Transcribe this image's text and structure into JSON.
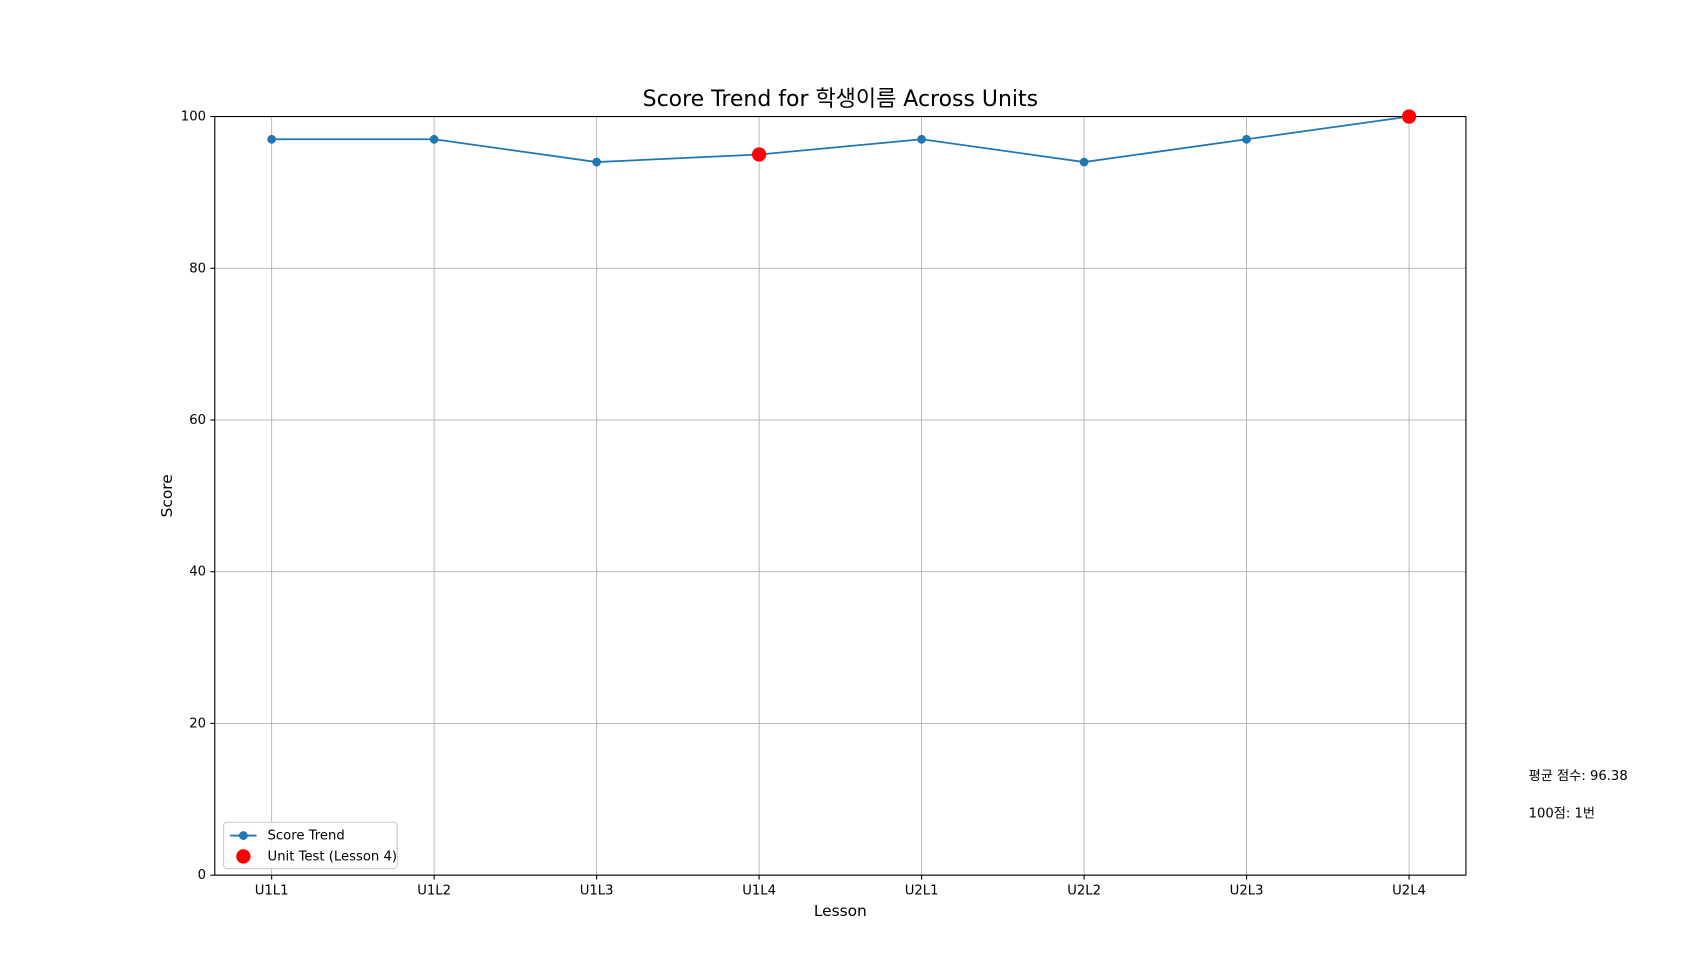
{
  "chart_data": {
    "type": "line",
    "title": "Score Trend for 학생이름 Across Units",
    "x_label": "Lesson",
    "y_label": "Score",
    "categories": [
      "U1L1",
      "U1L2",
      "U1L3",
      "U1L4",
      "U2L1",
      "U2L2",
      "U2L3",
      "U2L4"
    ],
    "series": [
      {
        "name": "Score Trend",
        "color": "#1f77b4",
        "values": [
          97,
          97,
          94,
          95,
          97,
          94,
          97,
          100
        ]
      },
      {
        "name": "Unit Test (Lesson 4)",
        "color": "#ff0000",
        "values": [
          null,
          null,
          null,
          95,
          null,
          null,
          null,
          100
        ]
      }
    ],
    "ylim": [
      0,
      100
    ],
    "yticks": [
      0,
      20,
      40,
      60,
      80,
      100
    ],
    "grid": true,
    "legend": "lower left",
    "annotations": [
      "평균 점수: 96.38",
      "100점: 1번"
    ]
  }
}
